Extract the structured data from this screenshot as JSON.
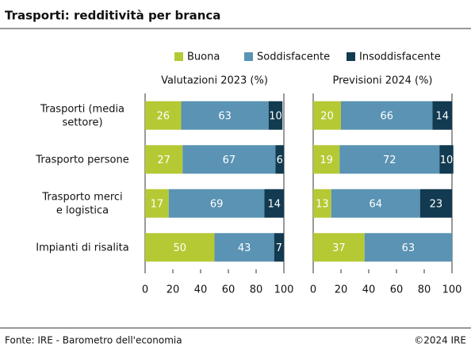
{
  "title": "Trasporti: redditività per branca",
  "source": "Fonte: IRE - Barometro dell'economia",
  "copyright": "©2024 IRE",
  "chart_data": [
    {
      "type": "stacked-bar-horizontal",
      "title": "Valutazioni 2023 (%)",
      "categories": [
        "Trasporti (media\nsettore)",
        "Trasporto persone",
        "Trasporto merci\ne logistica",
        "Impianti di risalita"
      ],
      "series": [
        {
          "name": "Buona",
          "color": "#b5c934",
          "values": [
            26,
            27,
            17,
            50
          ]
        },
        {
          "name": "Soddisfacente",
          "color": "#5a93b3",
          "values": [
            63,
            67,
            69,
            43
          ]
        },
        {
          "name": "Insoddisfacente",
          "color": "#123a50",
          "values": [
            10,
            6,
            14,
            7
          ]
        }
      ],
      "xlim": [
        0,
        100
      ],
      "xticks": [
        0,
        20,
        40,
        60,
        80,
        100
      ]
    },
    {
      "type": "stacked-bar-horizontal",
      "title": "Previsioni 2024 (%)",
      "series": [
        {
          "name": "Buona",
          "color": "#b5c934",
          "values": [
            20,
            19,
            13,
            37
          ]
        },
        {
          "name": "Soddisfacente",
          "color": "#5a93b3",
          "values": [
            66,
            72,
            64,
            63
          ]
        },
        {
          "name": "Insoddisfacente",
          "color": "#123a50",
          "values": [
            14,
            10,
            23,
            null
          ]
        }
      ],
      "xlim": [
        0,
        100
      ],
      "xticks": [
        0,
        20,
        40,
        60,
        80,
        100
      ]
    }
  ]
}
